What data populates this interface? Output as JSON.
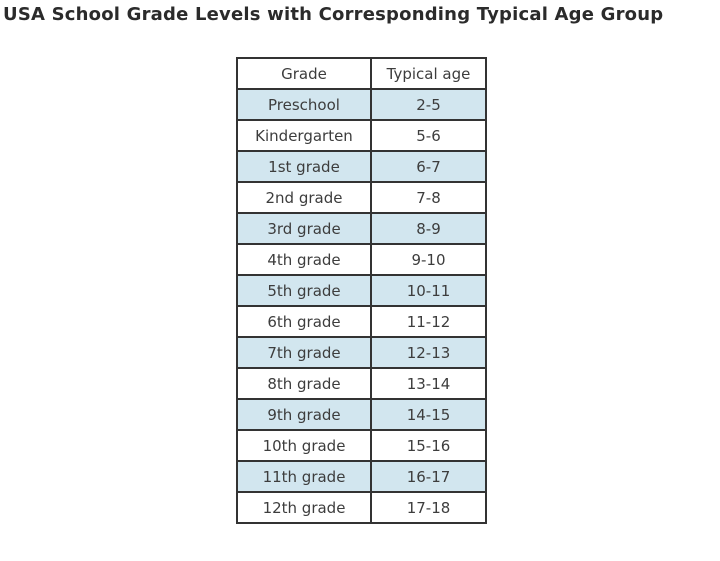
{
  "title": "USA School Grade Levels with Corresponding Typical Age Group",
  "colors": {
    "highlight_row_bg": "#d2e6ef",
    "plain_row_bg": "#ffffff",
    "border": "#333333",
    "cell_text": "#3d3d3d",
    "title_text": "#2b2b2b"
  },
  "chart_data": {
    "type": "table",
    "title": "USA School Grade Levels with Corresponding Typical Age Group",
    "columns": [
      "Grade",
      "Typical age"
    ],
    "rows": [
      [
        "Preschool",
        "2-5"
      ],
      [
        "Kindergarten",
        "5-6"
      ],
      [
        "1st grade",
        "6-7"
      ],
      [
        "2nd grade",
        "7-8"
      ],
      [
        "3rd grade",
        "8-9"
      ],
      [
        "4th grade",
        "9-10"
      ],
      [
        "5th grade",
        "10-11"
      ],
      [
        "6th grade",
        "11-12"
      ],
      [
        "7th grade",
        "12-13"
      ],
      [
        "8th grade",
        "13-14"
      ],
      [
        "9th grade",
        "14-15"
      ],
      [
        "10th grade",
        "15-16"
      ],
      [
        "11th grade",
        "16-17"
      ],
      [
        "12th grade",
        "17-18"
      ]
    ],
    "layout": {
      "row_striping": "alternating, starting highlighted on first data row",
      "grid": "all cell borders visible",
      "header_bg": "#ffffff"
    }
  }
}
